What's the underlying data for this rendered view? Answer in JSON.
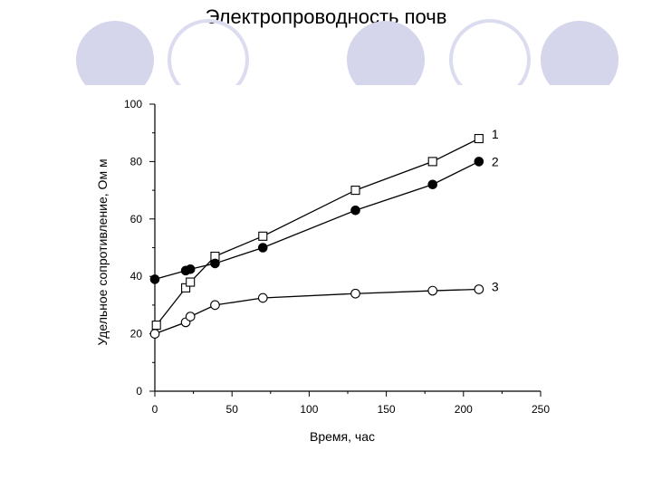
{
  "slide": {
    "title": "Электропроводность почв",
    "decor_circle_color": "#d5d5ec",
    "decor_circle_stroke": "#dcdcf0"
  },
  "chart_data": {
    "type": "line",
    "title": "",
    "xlabel": "Время, час",
    "ylabel": "Удельное сопротивление, Ом м",
    "xlim": [
      0,
      250
    ],
    "ylim": [
      0,
      100
    ],
    "xticks": [
      0,
      50,
      100,
      150,
      200,
      250
    ],
    "yticks": [
      0,
      20,
      40,
      60,
      80,
      100
    ],
    "grid": false,
    "legend": "labels at series ends (right)",
    "series": [
      {
        "name": "1",
        "marker": "open-square",
        "x": [
          1,
          20,
          23,
          39,
          70,
          130,
          180,
          210
        ],
        "y": [
          23,
          36,
          38,
          47,
          54,
          70,
          80,
          88
        ]
      },
      {
        "name": "2",
        "marker": "filled-circle",
        "x": [
          0,
          20,
          23,
          39,
          70,
          130,
          180,
          210
        ],
        "y": [
          39,
          42,
          42.5,
          44.5,
          50,
          63,
          72,
          80
        ]
      },
      {
        "name": "3",
        "marker": "open-circle",
        "x": [
          0,
          20,
          23,
          39,
          70,
          130,
          180,
          210
        ],
        "y": [
          20,
          24,
          26,
          30,
          32.5,
          34,
          35,
          35.5
        ]
      }
    ]
  }
}
